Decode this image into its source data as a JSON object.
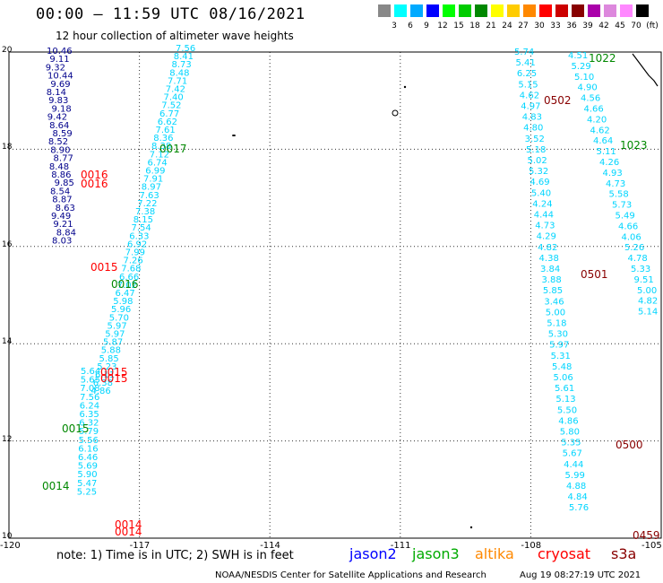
{
  "header": {
    "title": "00:00 – 11:59 UTC 08/16/2021",
    "subtitle": "12 hour collection of altimeter wave heights"
  },
  "color_scale": {
    "labels": [
      "3",
      "6",
      "9",
      "12",
      "15",
      "18",
      "21",
      "24",
      "27",
      "30",
      "33",
      "36",
      "39",
      "42",
      "45",
      "70",
      "(ft)"
    ],
    "colors": [
      "#888888",
      "#00ffff",
      "#00aaff",
      "#0000ff",
      "#00ff00",
      "#00cc00",
      "#008800",
      "#ffff00",
      "#ffcc00",
      "#ff8800",
      "#ff0000",
      "#cc0000",
      "#880000",
      "#aa00aa",
      "#dd88dd",
      "#ff88ff",
      "#000000"
    ]
  },
  "axes": {
    "lat_labels": [
      "20",
      "18",
      "16",
      "14",
      "12",
      "10"
    ],
    "lon_labels": [
      "-120",
      "-117",
      "-114",
      "-111",
      "-108",
      "-105"
    ]
  },
  "tracks": [
    {
      "satellite": "jason2",
      "color": "#00008b",
      "time": "",
      "points": [
        {
          "v": "10.46"
        },
        {
          "v": "9.11"
        },
        {
          "v": "9.32"
        },
        {
          "v": "10.44"
        },
        {
          "v": "9.69"
        },
        {
          "v": "8.14"
        },
        {
          "v": "9.83"
        },
        {
          "v": "9.18"
        },
        {
          "v": "9.42"
        },
        {
          "v": "8.64"
        },
        {
          "v": "8.59"
        },
        {
          "v": "8.52"
        },
        {
          "v": "8.90"
        },
        {
          "v": "8.77"
        },
        {
          "v": "8.48"
        },
        {
          "v": "8.86"
        },
        {
          "v": "9.85"
        },
        {
          "v": "8.54"
        },
        {
          "v": "8.87"
        },
        {
          "v": "8.63"
        },
        {
          "v": "9.49"
        },
        {
          "v": "9.21"
        },
        {
          "v": "8.84"
        },
        {
          "v": "8.03"
        }
      ]
    },
    {
      "satellite": "jason3",
      "color": "#00d5ff",
      "time": "0017",
      "points": [
        {
          "v": "7.56"
        },
        {
          "v": "8.41"
        },
        {
          "v": "8.73"
        },
        {
          "v": "8.48"
        },
        {
          "v": "7.71"
        },
        {
          "v": "7.42"
        },
        {
          "v": "7.40"
        },
        {
          "v": "7.52"
        },
        {
          "v": "6.77"
        },
        {
          "v": "6.62"
        },
        {
          "v": "7.61"
        },
        {
          "v": "8.36"
        },
        {
          "v": "8.38"
        },
        {
          "v": "7.12"
        },
        {
          "v": "6.74"
        },
        {
          "v": "6.99"
        },
        {
          "v": "7.91"
        },
        {
          "v": "8.97"
        },
        {
          "v": "7.63"
        },
        {
          "v": "7.22"
        },
        {
          "v": "7.38"
        },
        {
          "v": "8.15"
        },
        {
          "v": "7.54"
        },
        {
          "v": "6.33"
        },
        {
          "v": "6.92"
        },
        {
          "v": "7.99"
        },
        {
          "v": "7.26"
        },
        {
          "v": "7.68"
        },
        {
          "v": "6.66"
        },
        {
          "v": "7.02"
        },
        {
          "v": "6.47"
        },
        {
          "v": "5.98"
        },
        {
          "v": "5.96"
        },
        {
          "v": "5.70"
        },
        {
          "v": "5.97"
        },
        {
          "v": "5.97"
        },
        {
          "v": "5.87"
        },
        {
          "v": "5.88"
        },
        {
          "v": "5.85"
        },
        {
          "v": "5.23"
        },
        {
          "v": "6.11"
        },
        {
          "v": "6.38"
        },
        {
          "v": "4.86"
        }
      ]
    },
    {
      "satellite": "jason3",
      "color": "#00d5ff",
      "time": "0015",
      "points": [
        {
          "v": "5.64"
        },
        {
          "v": "5.65"
        },
        {
          "v": "7.08"
        },
        {
          "v": "7.56"
        },
        {
          "v": "6.24"
        },
        {
          "v": "6.35"
        },
        {
          "v": "6.32"
        },
        {
          "v": "5.79"
        },
        {
          "v": "5.56"
        },
        {
          "v": "6.16"
        },
        {
          "v": "6.46"
        },
        {
          "v": "5.69"
        },
        {
          "v": "5.90"
        },
        {
          "v": "5.47"
        },
        {
          "v": "5.25"
        }
      ]
    },
    {
      "satellite": "jason3",
      "color": "#00d5ff",
      "time": "1022",
      "points": [
        {
          "v": "5.74"
        },
        {
          "v": "5.41"
        },
        {
          "v": "6.25"
        },
        {
          "v": "5.15"
        },
        {
          "v": "4.62"
        },
        {
          "v": "4.97"
        },
        {
          "v": "4.83"
        },
        {
          "v": "4.80"
        },
        {
          "v": "3.52"
        },
        {
          "v": "5.18"
        },
        {
          "v": "5.02"
        },
        {
          "v": "5.32"
        },
        {
          "v": "4.69"
        },
        {
          "v": "5.40"
        },
        {
          "v": "4.24"
        },
        {
          "v": "4.44"
        },
        {
          "v": "4.73"
        },
        {
          "v": "4.29"
        },
        {
          "v": "4.82"
        },
        {
          "v": "4.38"
        },
        {
          "v": "3.84"
        },
        {
          "v": "3.88"
        },
        {
          "v": "5.85"
        },
        {
          "v": "3.46"
        },
        {
          "v": "5.00"
        },
        {
          "v": "5.18"
        },
        {
          "v": "5.30"
        },
        {
          "v": "5.97"
        },
        {
          "v": "5.31"
        },
        {
          "v": "5.48"
        },
        {
          "v": "5.06"
        },
        {
          "v": "5.61"
        },
        {
          "v": "5.13"
        },
        {
          "v": "5.50"
        },
        {
          "v": "4.86"
        },
        {
          "v": "5.80"
        },
        {
          "v": "5.35"
        },
        {
          "v": "5.67"
        },
        {
          "v": "4.44"
        },
        {
          "v": "5.99"
        },
        {
          "v": "4.88"
        },
        {
          "v": "4.84"
        },
        {
          "v": "5.76"
        }
      ]
    },
    {
      "satellite": "jason3",
      "color": "#00d5ff",
      "time": "1023",
      "points": [
        {
          "v": "4.51"
        },
        {
          "v": "5.29"
        },
        {
          "v": "5.10"
        },
        {
          "v": "4.90"
        },
        {
          "v": "4.56"
        },
        {
          "v": "4.66"
        },
        {
          "v": "4.20"
        },
        {
          "v": "4.62"
        },
        {
          "v": "4.64"
        },
        {
          "v": "5.11"
        },
        {
          "v": "4.26"
        },
        {
          "v": "4.93"
        },
        {
          "v": "4.73"
        },
        {
          "v": "5.58"
        },
        {
          "v": "5.73"
        },
        {
          "v": "5.49"
        },
        {
          "v": "4.66"
        },
        {
          "v": "4.06"
        },
        {
          "v": "5.26"
        },
        {
          "v": "4.78"
        },
        {
          "v": "5.33"
        },
        {
          "v": "9.51"
        },
        {
          "v": "5.00"
        },
        {
          "v": "4.82"
        },
        {
          "v": "5.14"
        }
      ]
    }
  ],
  "time_labels": [
    {
      "text": "0017",
      "color": "#008800"
    },
    {
      "text": "0016",
      "color": "#008800"
    },
    {
      "text": "0015",
      "color": "#008800"
    },
    {
      "text": "0014",
      "color": "#008800"
    },
    {
      "text": "0016",
      "color": "#ff0000"
    },
    {
      "text": "0016",
      "color": "#ff0000"
    },
    {
      "text": "0015",
      "color": "#ff0000"
    },
    {
      "text": "0015",
      "color": "#ff0000"
    },
    {
      "text": "0015",
      "color": "#ff0000"
    },
    {
      "text": "0014",
      "color": "#ff0000"
    },
    {
      "text": "0014",
      "color": "#ff0000"
    },
    {
      "text": "1022",
      "color": "#008800"
    },
    {
      "text": "1023",
      "color": "#008800"
    },
    {
      "text": "0502",
      "color": "#880000"
    },
    {
      "text": "0501",
      "color": "#880000"
    },
    {
      "text": "0500",
      "color": "#880000"
    },
    {
      "text": "0459",
      "color": "#880000"
    }
  ],
  "footer": {
    "note": "note:  1) Time is in UTC; 2) SWH is in feet",
    "legend": [
      {
        "label": "jason2",
        "color": "#0000ff"
      },
      {
        "label": "jason3",
        "color": "#00aa00"
      },
      {
        "label": "altika",
        "color": "#ff8800"
      },
      {
        "label": "cryosat",
        "color": "#ff0000"
      },
      {
        "label": "s3a",
        "color": "#880000"
      }
    ],
    "credit": "NOAA/NESDIS Center for Satellite Applications and Research",
    "timestamp": "Aug 19 08:27:19 UTC 2021"
  }
}
